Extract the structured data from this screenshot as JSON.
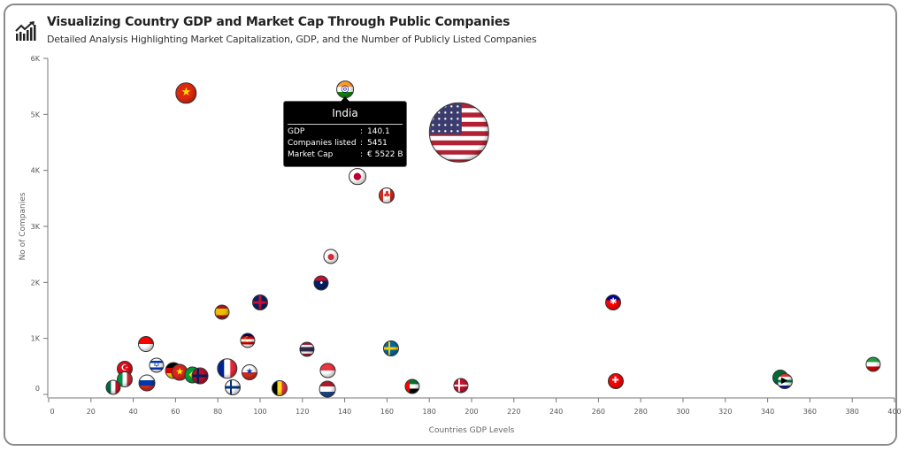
{
  "header": {
    "title": "Visualizing Country GDP and Market Cap Through Public Companies",
    "subtitle": "Detailed Analysis Highlighting Market Capitalization, GDP, and the Number of Publicly Listed Companies",
    "icon": "chart-growth-icon"
  },
  "tooltip": {
    "title": "India",
    "rows": [
      {
        "label": "GDP",
        "sep": ":",
        "value": "140.1"
      },
      {
        "label": "Companies listed",
        "sep": ":",
        "value": "5451"
      },
      {
        "label": "Market Cap",
        "sep": ":",
        "value": "€ 5522 B"
      }
    ]
  },
  "chart_data": {
    "type": "scatter",
    "title": "Visualizing Country GDP and Market Cap Through Public Companies",
    "xlabel": "Countries GDP Levels",
    "ylabel": "No of Companies",
    "xlim": [
      0,
      400
    ],
    "ylim": [
      0,
      6000
    ],
    "x_ticks": [
      "0",
      "20",
      "40",
      "60",
      "80",
      "100",
      "120",
      "140",
      "160",
      "180",
      "200",
      "220",
      "240",
      "260",
      "280",
      "300",
      "320",
      "340",
      "360",
      "380",
      "400"
    ],
    "y_ticks": [
      "0",
      "1K",
      "2K",
      "3K",
      "4K",
      "5K",
      "6K"
    ],
    "grid": false,
    "points": [
      {
        "country": "China",
        "gdp": 65,
        "companies": 5380,
        "size": 1.3,
        "pattern": "h",
        "colors": [
          "#de2910"
        ],
        "mark": "★",
        "mark_color": "#ffde00"
      },
      {
        "country": "India",
        "gdp": 140.1,
        "companies": 5451,
        "market_cap": 5522,
        "size": 1.1,
        "pattern": "h",
        "colors": [
          "#ff9933",
          "#ffffff",
          "#138808"
        ],
        "mark": "◎",
        "mark_color": "#000080"
      },
      {
        "country": "United States",
        "gdp": 194,
        "companies": 4680,
        "size": 3.8,
        "pattern": "us",
        "colors": [
          "#b22234",
          "#ffffff",
          "#3c3b6e"
        ]
      },
      {
        "country": "Japan",
        "gdp": 146,
        "companies": 3890,
        "size": 1.1,
        "pattern": "h",
        "colors": [
          "#ffffff"
        ],
        "mark": "●",
        "mark_color": "#bc002d"
      },
      {
        "country": "Canada",
        "gdp": 160,
        "companies": 3555,
        "size": 1,
        "pattern": "v",
        "colors": [
          "#d52b1e",
          "#ffffff",
          "#ffffff",
          "#d52b1e"
        ],
        "mark": "♣",
        "mark_color": "#d52b1e"
      },
      {
        "country": "South Korea",
        "gdp": 133.5,
        "companies": 2460,
        "size": 0.95,
        "pattern": "h",
        "colors": [
          "#ffffff"
        ],
        "mark": "●",
        "mark_color": "#cd2e3a"
      },
      {
        "country": "Australia",
        "gdp": 129,
        "companies": 1985,
        "size": 0.95,
        "pattern": "h",
        "colors": [
          "#c8102e",
          "#012169",
          "#012169"
        ],
        "mark": "•",
        "mark_color": "#ffffff"
      },
      {
        "country": "Spain",
        "gdp": 82,
        "companies": 1476,
        "size": 0.95,
        "pattern": "h",
        "colors": [
          "#aa151b",
          "#f1bf00",
          "#f1bf00",
          "#aa151b"
        ]
      },
      {
        "country": "United Kingdom",
        "gdp": 100,
        "companies": 1650,
        "size": 1,
        "pattern": "uk",
        "colors": [
          "#012169",
          "#ffffff",
          "#c8102e"
        ]
      },
      {
        "country": "Taiwan",
        "gdp": 267,
        "companies": 1635,
        "size": 1,
        "pattern": "h",
        "colors": [
          "#000095",
          "#fe0000",
          "#fe0000"
        ],
        "mark": "✱",
        "mark_color": "#ffffff"
      },
      {
        "country": "Malaysia",
        "gdp": 94,
        "companies": 968,
        "size": 0.95,
        "pattern": "h",
        "colors": [
          "#010066",
          "#cc0001",
          "#ffffff",
          "#cc0001",
          "#ffffff"
        ],
        "mark": "☾",
        "mark_color": "#ffcc00"
      },
      {
        "country": "Indonesia",
        "gdp": 46,
        "companies": 905,
        "size": 1,
        "pattern": "h",
        "colors": [
          "#ff0000",
          "#ffffff"
        ]
      },
      {
        "country": "Thailand",
        "gdp": 122,
        "companies": 810,
        "size": 0.95,
        "pattern": "h",
        "colors": [
          "#a51931",
          "#f4f5f8",
          "#2d2a4a",
          "#2d2a4a",
          "#f4f5f8",
          "#a51931"
        ]
      },
      {
        "country": "Sweden",
        "gdp": 162,
        "companies": 825,
        "size": 1,
        "pattern": "cross",
        "colors": [
          "#006aa7",
          "#fecc00"
        ]
      },
      {
        "country": "Iran",
        "gdp": 390,
        "companies": 540,
        "size": 0.95,
        "pattern": "h",
        "colors": [
          "#239f40",
          "#ffffff",
          "#da0000"
        ]
      },
      {
        "country": "Israel",
        "gdp": 51,
        "companies": 524,
        "size": 0.95,
        "pattern": "h",
        "colors": [
          "#ffffff",
          "#0038b8",
          "#ffffff",
          "#ffffff",
          "#0038b8",
          "#ffffff"
        ],
        "mark": "✡",
        "mark_color": "#0038b8"
      },
      {
        "country": "Turkey",
        "gdp": 36,
        "companies": 460,
        "size": 1,
        "pattern": "h",
        "colors": [
          "#e30a17"
        ],
        "mark": "☪",
        "mark_color": "#ffffff"
      },
      {
        "country": "Germany",
        "gdp": 59,
        "companies": 428,
        "size": 1.05,
        "pattern": "h",
        "colors": [
          "#000000",
          "#dd0000",
          "#ffce00"
        ]
      },
      {
        "country": "Vietnam",
        "gdp": 62,
        "companies": 397,
        "size": 1.05,
        "pattern": "h",
        "colors": [
          "#da251d"
        ],
        "mark": "★",
        "mark_color": "#ffff00"
      },
      {
        "country": "Brazil",
        "gdp": 68,
        "companies": 350,
        "size": 1.05,
        "pattern": "h",
        "colors": [
          "#009c3b"
        ],
        "mark": "◆",
        "mark_color": "#ffdf00"
      },
      {
        "country": "Norway",
        "gdp": 71.5,
        "companies": 333,
        "size": 1.05,
        "pattern": "cross",
        "colors": [
          "#ba0c2f",
          "#00205b"
        ]
      },
      {
        "country": "France",
        "gdp": 84.5,
        "companies": 460,
        "size": 1.3,
        "pattern": "v",
        "colors": [
          "#002395",
          "#ffffff",
          "#ed2939"
        ]
      },
      {
        "country": "Chile",
        "gdp": 95,
        "companies": 397,
        "size": 1,
        "pattern": "h",
        "colors": [
          "#ffffff",
          "#d52b1e"
        ],
        "mark": "★",
        "mark_color": "#0039a6"
      },
      {
        "country": "Singapore",
        "gdp": 132,
        "companies": 428,
        "size": 0.95,
        "pattern": "h",
        "colors": [
          "#ef3340",
          "#ffffff"
        ]
      },
      {
        "country": "Italy",
        "gdp": 36,
        "companies": 270,
        "size": 1,
        "pattern": "v",
        "colors": [
          "#009246",
          "#ffffff",
          "#ce2b37"
        ]
      },
      {
        "country": "Russia",
        "gdp": 46.5,
        "companies": 206,
        "size": 1.05,
        "pattern": "h",
        "colors": [
          "#ffffff",
          "#0039a6",
          "#d52b1e"
        ]
      },
      {
        "country": "Mexico",
        "gdp": 30.5,
        "companies": 127,
        "size": 0.95,
        "pattern": "v",
        "colors": [
          "#006847",
          "#ffffff",
          "#ce1126"
        ]
      },
      {
        "country": "Finland",
        "gdp": 87,
        "companies": 127,
        "size": 1,
        "pattern": "cross",
        "colors": [
          "#ffffff",
          "#003580"
        ]
      },
      {
        "country": "Belgium",
        "gdp": 109,
        "companies": 111,
        "size": 1,
        "pattern": "v",
        "colors": [
          "#000000",
          "#fdda24",
          "#ef3340"
        ]
      },
      {
        "country": "Netherlands",
        "gdp": 132,
        "companies": 95,
        "size": 1.05,
        "pattern": "h",
        "colors": [
          "#ae1c28",
          "#ffffff",
          "#21468b"
        ]
      },
      {
        "country": "United Arab Emirates",
        "gdp": 172,
        "companies": 143,
        "size": 0.95,
        "pattern": "uae",
        "colors": [
          "#ff0000",
          "#00732f",
          "#ffffff",
          "#000000"
        ]
      },
      {
        "country": "Denmark",
        "gdp": 195,
        "companies": 159,
        "size": 0.95,
        "pattern": "cross",
        "colors": [
          "#c8102e",
          "#ffffff"
        ]
      },
      {
        "country": "Switzerland",
        "gdp": 268,
        "companies": 238,
        "size": 1,
        "pattern": "h",
        "colors": [
          "#ff0000"
        ],
        "mark": "✚",
        "mark_color": "#ffffff"
      },
      {
        "country": "Saudi Arabia",
        "gdp": 346,
        "companies": 300,
        "size": 1,
        "pattern": "h",
        "colors": [
          "#006c35"
        ]
      },
      {
        "country": "South Africa",
        "gdp": 348,
        "companies": 240,
        "size": 1,
        "pattern": "h",
        "colors": [
          "#de3831",
          "#ffffff",
          "#007a4d",
          "#ffffff",
          "#002395"
        ],
        "mark": "▶",
        "mark_color": "#000000"
      }
    ]
  }
}
